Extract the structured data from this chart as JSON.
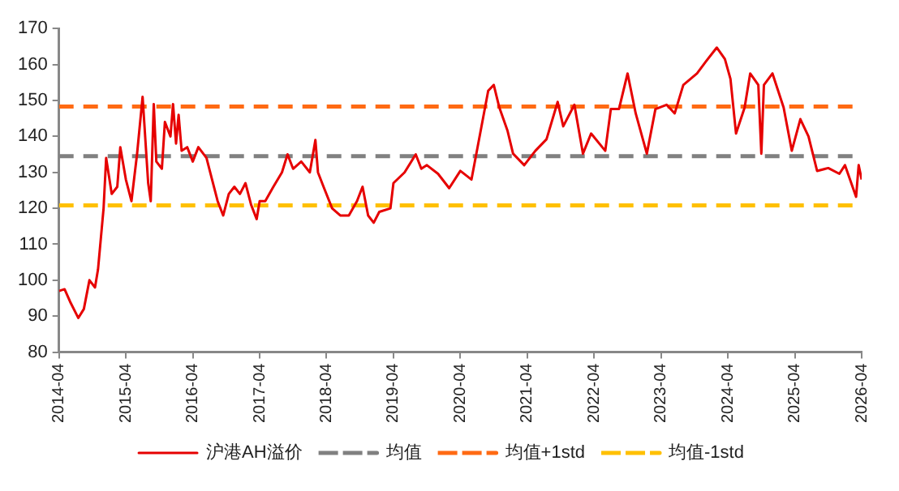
{
  "chart_data": {
    "type": "line",
    "xlim": [
      "2014-04",
      "2026-04"
    ],
    "xticks": [
      "2014-04",
      "2015-04",
      "2016-04",
      "2017-04",
      "2018-04",
      "2019-04",
      "2020-04",
      "2021-04",
      "2022-04",
      "2023-04",
      "2024-04",
      "2025-04",
      "2026-04"
    ],
    "ylim": [
      80,
      170
    ],
    "yticks": [
      80,
      90,
      100,
      110,
      120,
      130,
      140,
      150,
      160,
      170
    ],
    "grid": false,
    "legend": "bottom",
    "marker": "none",
    "series": [
      {
        "name": "沪港AH溢价",
        "color": "#e60000",
        "line_style": "solid",
        "x": [
          "2014-04-01",
          "2014-05-01",
          "2014-06-01",
          "2014-07-15",
          "2014-08-15",
          "2014-09-15",
          "2014-10-15",
          "2014-11-01",
          "2014-12-01",
          "2014-12-15",
          "2015-01-15",
          "2015-02-15",
          "2015-03-01",
          "2015-04-01",
          "2015-05-01",
          "2015-06-01",
          "2015-07-01",
          "2015-08-01",
          "2015-08-15",
          "2015-09-01",
          "2015-09-15",
          "2015-10-15",
          "2015-11-01",
          "2015-12-01",
          "2015-12-15",
          "2016-01-01",
          "2016-01-15",
          "2016-02-01",
          "2016-03-01",
          "2016-04-01",
          "2016-05-01",
          "2016-06-15",
          "2016-07-15",
          "2016-08-15",
          "2016-09-15",
          "2016-10-15",
          "2016-11-15",
          "2016-12-15",
          "2017-01-15",
          "2017-02-15",
          "2017-03-15",
          "2017-04-01",
          "2017-05-01",
          "2017-06-15",
          "2017-08-01",
          "2017-09-01",
          "2017-10-01",
          "2017-11-15",
          "2018-01-01",
          "2018-02-01",
          "2018-02-15",
          "2018-03-15",
          "2018-05-01",
          "2018-06-15",
          "2018-08-01",
          "2018-09-15",
          "2018-10-15",
          "2018-11-15",
          "2018-12-15",
          "2019-01-15",
          "2019-03-15",
          "2019-04-01",
          "2019-06-01",
          "2019-08-01",
          "2019-09-01",
          "2019-10-01",
          "2019-12-01",
          "2020-02-01",
          "2020-04-01",
          "2020-06-01",
          "2020-07-15",
          "2020-09-01",
          "2020-10-01",
          "2020-11-01",
          "2020-12-15",
          "2021-01-15",
          "2021-03-15",
          "2021-05-15",
          "2021-07-15",
          "2021-09-15",
          "2021-10-15",
          "2021-12-15",
          "2022-02-01",
          "2022-03-15",
          "2022-06-01",
          "2022-07-01",
          "2022-08-15",
          "2022-10-01",
          "2022-11-15",
          "2023-01-15",
          "2023-03-01",
          "2023-05-01",
          "2023-06-15",
          "2023-08-01",
          "2023-10-15",
          "2023-12-01",
          "2024-02-01",
          "2024-03-15",
          "2024-04-15",
          "2024-05-15",
          "2024-07-01",
          "2024-08-01",
          "2024-09-15",
          "2024-10-01",
          "2024-10-15",
          "2024-12-01",
          "2025-02-01",
          "2025-03-15",
          "2025-05-01",
          "2025-06-15",
          "2025-08-01",
          "2025-10-01",
          "2025-12-01",
          "2026-01-01",
          "2026-03-01",
          "2026-03-15",
          "2026-04-01"
        ],
        "values": [
          97,
          97.5,
          94,
          89.5,
          92,
          100,
          98,
          103,
          120,
          134,
          124,
          126,
          137,
          128,
          122,
          135,
          151,
          127,
          122,
          149,
          133,
          131,
          144,
          140,
          149,
          138,
          146,
          136,
          137,
          133,
          137,
          134,
          128,
          122,
          118,
          124,
          126,
          124,
          127,
          121,
          117,
          122,
          122,
          126,
          130,
          135,
          131,
          133,
          130,
          139,
          130,
          126,
          120,
          118,
          118,
          122,
          126,
          118,
          116,
          119,
          120,
          127,
          130,
          135,
          131,
          132,
          129.6,
          125.6,
          130.4,
          128,
          140,
          152.7,
          154.3,
          148,
          141.6,
          135.2,
          132,
          136,
          139.2,
          149.6,
          142.8,
          148.8,
          135.2,
          140.8,
          136,
          147.6,
          147.6,
          157.5,
          146.4,
          135.2,
          147.6,
          148.8,
          146.4,
          154.3,
          157.5,
          160.7,
          164.7,
          161.5,
          156,
          140.8,
          148,
          157.5,
          154.3,
          135.2,
          154.3,
          157.5,
          148,
          136,
          144.8,
          140,
          130.4,
          131.2,
          129.6,
          132,
          123.2,
          132,
          128
        ]
      },
      {
        "name": "均值",
        "color": "#808080",
        "line_style": "dashed",
        "x": [
          "2014-04-01",
          "2026-04-01"
        ],
        "values": [
          134.5,
          134.5
        ]
      },
      {
        "name": "均值+1std",
        "color": "#ff6a13",
        "line_style": "dashed",
        "x": [
          "2014-04-01",
          "2026-04-01"
        ],
        "values": [
          148.3,
          148.3
        ]
      },
      {
        "name": "均值-1std",
        "color": "#ffc000",
        "line_style": "dashed",
        "x": [
          "2014-04-01",
          "2026-04-01"
        ],
        "values": [
          120.8,
          120.8
        ]
      }
    ]
  }
}
